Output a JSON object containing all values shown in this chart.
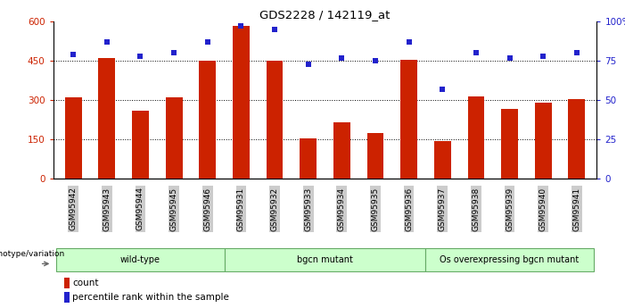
{
  "title": "GDS2228 / 142119_at",
  "samples": [
    "GSM95942",
    "GSM95943",
    "GSM95944",
    "GSM95945",
    "GSM95946",
    "GSM95931",
    "GSM95932",
    "GSM95933",
    "GSM95934",
    "GSM95935",
    "GSM95936",
    "GSM95937",
    "GSM95938",
    "GSM95939",
    "GSM95940",
    "GSM95941"
  ],
  "counts": [
    310,
    460,
    260,
    310,
    450,
    585,
    450,
    155,
    215,
    175,
    455,
    145,
    315,
    265,
    290,
    305
  ],
  "percentiles": [
    79,
    87,
    78,
    80,
    87,
    97,
    95,
    73,
    77,
    75,
    87,
    57,
    80,
    77,
    78,
    80
  ],
  "bar_color": "#cc2200",
  "dot_color": "#2222cc",
  "left_ylim": [
    0,
    600
  ],
  "right_ylim": [
    0,
    100
  ],
  "left_yticks": [
    0,
    150,
    300,
    450,
    600
  ],
  "right_yticks": [
    0,
    25,
    50,
    75,
    100
  ],
  "right_yticklabels": [
    "0",
    "25",
    "50",
    "75",
    "100%"
  ],
  "grid_lines": [
    150,
    300,
    450
  ],
  "groups": [
    {
      "label": "wild-type",
      "start": 0,
      "end": 5
    },
    {
      "label": "bgcn mutant",
      "start": 5,
      "end": 11
    },
    {
      "label": "Os overexpressing bgcn mutant",
      "start": 11,
      "end": 16
    }
  ],
  "group_color": "#ccffcc",
  "group_border_color": "#66aa66",
  "tick_bg_color": "#cccccc",
  "legend_count_label": "count",
  "legend_percentile_label": "percentile rank within the sample",
  "genotype_label": "genotype/variation"
}
